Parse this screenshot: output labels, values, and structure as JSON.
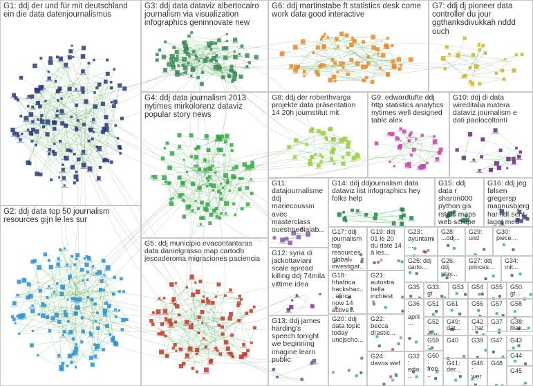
{
  "colors": {
    "edge": "#4caf50",
    "edge_dark": "#2e7d32",
    "border": "#c8c8c8",
    "text": "#333333",
    "G1": "#2d3a7a",
    "G2": "#2a8fd4",
    "G3": "#3d8a5a",
    "G4": "#35a845",
    "G5": "#c0392b",
    "G6": "#e8892e",
    "G7": "#c9b62a",
    "G8": "#9ccc3a",
    "G9": "#c844a8",
    "G10": "#6a2d7a",
    "G11": "#8a5aa8",
    "G12": "#7a3a8a",
    "G13": "#5a5a8a",
    "G14": "#1e8a4a",
    "G15": "#2a7a6a",
    "G16": "#3a4a8a"
  },
  "groups": [
    {
      "id": "G1",
      "label": "G1: ddj der und für mit deutschland ein die data datenjournalismus"
    },
    {
      "id": "G2",
      "label": "G2: ddj data top 50 journalism resources gijn le les sur"
    },
    {
      "id": "G3",
      "label": "G3: ddj data dataviz albertocairo journalism via visualization infographics geninnovate new"
    },
    {
      "id": "G4",
      "label": "G4: ddj data journalism 2013 nytimes mirkolorenz dataviz popular story news"
    },
    {
      "id": "G5",
      "label": "G5: ddj municipio evacontantaras data danielgrasso map cartodb jescuderoma migraciones paciencia"
    },
    {
      "id": "G6",
      "label": "G6: ddj martinstabe ft statistics desk come work data good interactive"
    },
    {
      "id": "G7",
      "label": "G7: ddj dj pioneer data controller du jour ggthanksdivukkah nddd ouch"
    },
    {
      "id": "G8",
      "label": "G8: ddj der roberthvarga projekte data präsentation 14 20h journstitut mit"
    },
    {
      "id": "G9",
      "label": "G9: edwardtufte ddj http statistics analytics nytimes well designed table alex"
    },
    {
      "id": "G10",
      "label": "G10: ddj di data wireditalia matera dataviz journalism e dati paolocoltonti"
    },
    {
      "id": "G11",
      "label": "G11: datajournalisme ddj mariecoussin avec masterclass ouestmedialab..."
    },
    {
      "id": "G12",
      "label": "G12: syria di jackottaviani scale spread killing ddj 74mila vittime idea"
    },
    {
      "id": "G13",
      "label": "G13: ddj james harding's speech tonight we beginning imagine learn public"
    },
    {
      "id": "G14",
      "label": "G14: ddj ddjournalism data dataviz list infographics hey folks help"
    },
    {
      "id": "G15",
      "label": "G15: ddj data r sharon000 python gis rstats maps web scrape"
    },
    {
      "id": "G16",
      "label": "G16: ddj jeg følsen gregersp magnusbjerg har lidt sent laget med"
    },
    {
      "id": "G17",
      "label": "G17: ddj journalism top resources global investigat..."
    },
    {
      "id": "G18",
      "label": "G18: hhafrica hackshac... africa now 14 active..."
    },
    {
      "id": "G19",
      "label": "G19: ddj 01 le 20 du date 14 à les..."
    },
    {
      "id": "G20",
      "label": "G20: ddj data topic today uncjscho..."
    },
    {
      "id": "G21",
      "label": "G21: autostra bella inchiest"
    },
    {
      "id": "G22",
      "label": "G22: becca drastic..."
    },
    {
      "id": "G23",
      "label": "G23: ayuntami..."
    },
    {
      "id": "G24",
      "label": "G24: davos wef"
    },
    {
      "id": "G25",
      "label": "G25: ddj carto..."
    },
    {
      "id": "G26",
      "label": "G26: ddj play..."
    },
    {
      "id": "G27",
      "label": "G27: ddj princes..."
    },
    {
      "id": "G28",
      "label": "G28: ...ddj..."
    },
    {
      "id": "G29",
      "label": "G29: und"
    },
    {
      "id": "G30",
      "label": "G30: piece..."
    },
    {
      "id": "G31",
      "label": "G31: ..."
    },
    {
      "id": "G32",
      "label": "G32: edw..."
    },
    {
      "id": "G33",
      "label": "G33: gt mid..."
    },
    {
      "id": "G34",
      "label": "G34: mit..."
    },
    {
      "id": "G35",
      "label": "G35"
    },
    {
      "id": "G36",
      "label": "G36: april..."
    },
    {
      "id": "G37",
      "label": "G37"
    },
    {
      "id": "G38",
      "label": "G38: blak..."
    },
    {
      "id": "G39",
      "label": "G39"
    },
    {
      "id": "G40",
      "label": "G40"
    },
    {
      "id": "G41",
      "label": "G41: der..."
    },
    {
      "id": "G42",
      "label": "G42: hat"
    },
    {
      "id": "G43",
      "label": "G43"
    },
    {
      "id": "G44",
      "label": "G44:"
    },
    {
      "id": "G45",
      "label": "G45"
    },
    {
      "id": "G46",
      "label": "G46: wer"
    },
    {
      "id": "G47",
      "label": "G47"
    },
    {
      "id": "G48",
      "label": "G48"
    },
    {
      "id": "G49",
      "label": "G49: dat..."
    },
    {
      "id": "G50",
      "label": "G50: gt..."
    },
    {
      "id": "G51",
      "label": "G51"
    },
    {
      "id": "G52",
      "label": "G52: new..."
    },
    {
      "id": "G53",
      "label": "G53"
    },
    {
      "id": "G54",
      "label": "G54"
    },
    {
      "id": "G55",
      "label": "G55"
    },
    {
      "id": "G56",
      "label": "G56"
    },
    {
      "id": "G57",
      "label": "G57"
    },
    {
      "id": "G58",
      "label": "G58"
    },
    {
      "id": "G59",
      "label": "G59: ecr..."
    },
    {
      "id": "G60",
      "label": "G60: free..."
    },
    {
      "id": "G61",
      "label": "G61"
    }
  ]
}
